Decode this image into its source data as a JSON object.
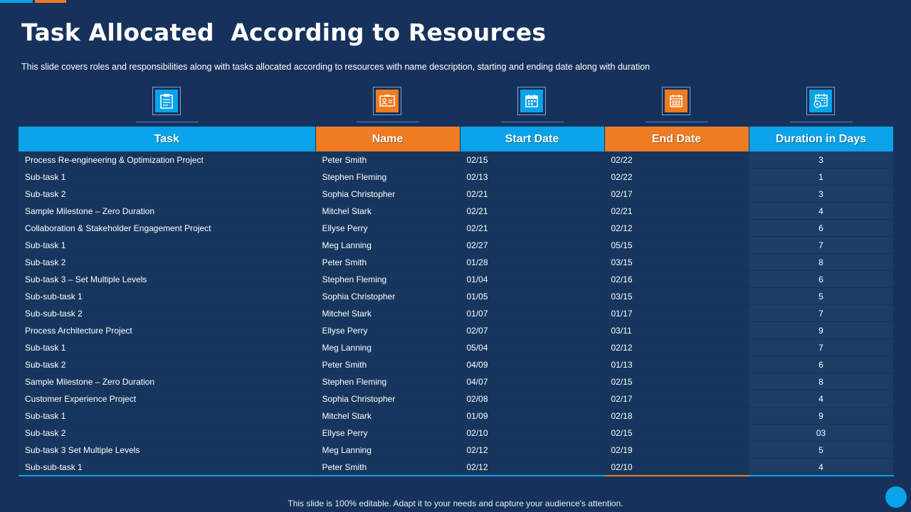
{
  "title": "Task Allocated  According to Resources",
  "subtitle": "This slide covers roles and responsibilities along with tasks allocated according to resources with name description, starting and ending date along with duration",
  "icons": [
    "clipboard-icon",
    "id-card-icon",
    "calendar-icon",
    "calendar-grid-icon",
    "calendar-gear-icon"
  ],
  "colors": {
    "background": "#16325c",
    "blue": "#0aa3e9",
    "orange": "#ef7b22"
  },
  "table": {
    "headers": [
      "Task",
      "Name",
      "Start Date",
      "End Date",
      "Duration in Days"
    ],
    "rows": [
      [
        "Process Re-engineering & Optimization Project",
        "Peter Smith",
        "02/15",
        "02/22",
        "3"
      ],
      [
        "Sub-task 1",
        "Stephen Fleming",
        "02/13",
        "02/22",
        "1"
      ],
      [
        "Sub-task 2",
        "Sophia Christopher",
        "02/21",
        "02/17",
        "3"
      ],
      [
        "Sample Milestone – Zero Duration",
        "Mitchel Stark",
        "02/21",
        "02/21",
        "4"
      ],
      [
        "Collaboration & Stakeholder Engagement Project",
        "Ellyse Perry",
        "02/21",
        "02/12",
        "6"
      ],
      [
        "Sub-task 1",
        "Meg Lanning",
        "02/27",
        "05/15",
        "7"
      ],
      [
        "Sub-task 2",
        "Peter Smith",
        "01/28",
        "03/15",
        "8"
      ],
      [
        "Sub-task 3 – Set Multiple Levels",
        "Stephen Fleming",
        "01/04",
        "02/16",
        "6"
      ],
      [
        "Sub-sub-task 1",
        "Sophia Christopher",
        "01/05",
        "03/15",
        "5"
      ],
      [
        "Sub-sub-task 2",
        "Mitchel Stark",
        "01/07",
        "01/17",
        "7"
      ],
      [
        "Process Architecture Project",
        "Ellyse Perry",
        "02/07",
        "03/11",
        "9"
      ],
      [
        "Sub-task 1",
        "Meg Lanning",
        "05/04",
        "02/12",
        "7"
      ],
      [
        "Sub-task 2",
        "Peter Smith",
        "04/09",
        "01/13",
        "6"
      ],
      [
        "Sample Milestone – Zero Duration",
        "Stephen Fleming",
        "04/07",
        "02/15",
        "8"
      ],
      [
        "Customer Experience Project",
        "Sophia Christopher",
        "02/08",
        "02/17",
        "4"
      ],
      [
        "Sub-task 1",
        "Mitchel Stark",
        "01/09",
        "02/18",
        "9"
      ],
      [
        "Sub-task 2",
        "Ellyse Perry",
        "02/10",
        "02/15",
        "03"
      ],
      [
        "Sub-task 3 Set Multiple Levels",
        "Meg Lanning",
        "02/12",
        "02/19",
        "5"
      ],
      [
        "Sub-sub-task 1",
        "Peter Smith",
        "02/12",
        "02/10",
        "4"
      ]
    ]
  },
  "footer": "This slide is 100% editable. Adapt it to your needs and capture your audience's attention."
}
